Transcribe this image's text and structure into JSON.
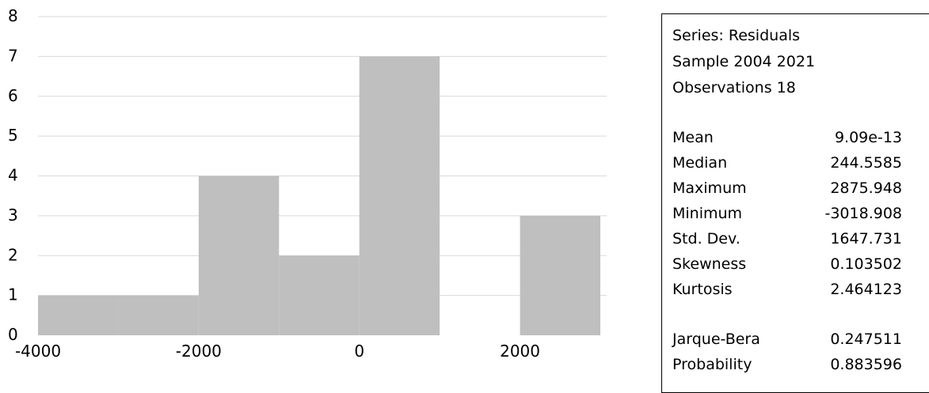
{
  "chart_data": {
    "type": "bar",
    "title": "",
    "xlabel": "",
    "ylabel": "",
    "bins": [
      {
        "from": -4000,
        "to": -3000,
        "count": 1
      },
      {
        "from": -3000,
        "to": -2000,
        "count": 1
      },
      {
        "from": -2000,
        "to": -1000,
        "count": 4
      },
      {
        "from": -1000,
        "to": 0,
        "count": 2
      },
      {
        "from": 0,
        "to": 1000,
        "count": 7
      },
      {
        "from": 1000,
        "to": 2000,
        "count": 0
      },
      {
        "from": 2000,
        "to": 3000,
        "count": 3
      }
    ],
    "xlim": [
      -4000,
      3000
    ],
    "ylim": [
      0,
      8
    ],
    "x_ticks": [
      -4000,
      -2000,
      0,
      2000
    ],
    "y_ticks": [
      0,
      1,
      2,
      3,
      4,
      5,
      6,
      7,
      8
    ],
    "bar_color": "#bfbfbf",
    "grid": true
  },
  "stats": {
    "series": "Series: Residuals",
    "sample": "Sample 2004 2021",
    "observations": "Observations 18",
    "rows": [
      {
        "label": "Mean",
        "value": "9.09e-13"
      },
      {
        "label": "Median",
        "value": "244.5585"
      },
      {
        "label": "Maximum",
        "value": "2875.948"
      },
      {
        "label": "Minimum",
        "value": "-3018.908"
      },
      {
        "label": "Std. Dev.",
        "value": "1647.731"
      },
      {
        "label": "Skewness",
        "value": "0.103502"
      },
      {
        "label": "Kurtosis",
        "value": "2.464123"
      }
    ],
    "test_rows": [
      {
        "label": "Jarque-Bera",
        "value": "0.247511"
      },
      {
        "label": "Probability",
        "value": "0.883596"
      }
    ]
  }
}
